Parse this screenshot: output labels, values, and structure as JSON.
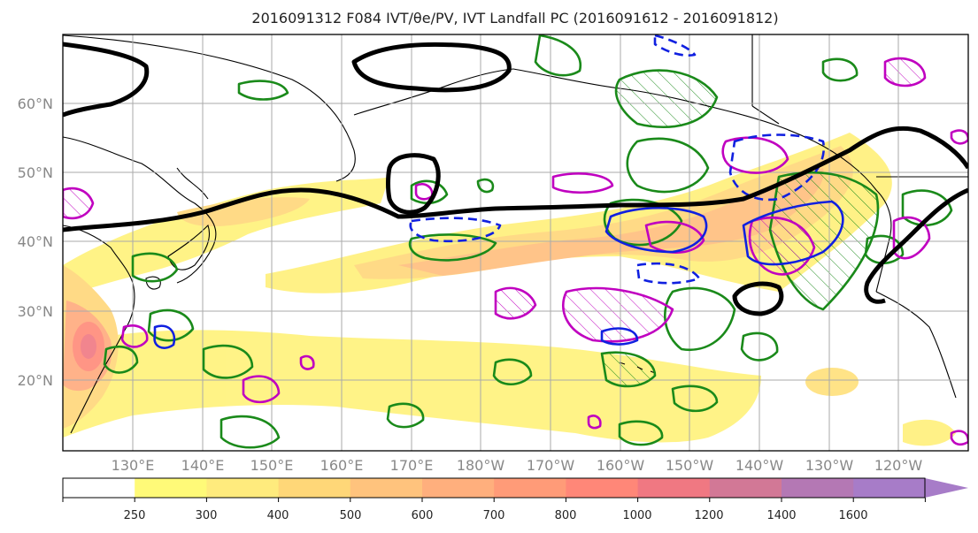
{
  "title": "2016091312 F084 IVT/θe/PV, IVT Landfall PC (2016091612 - 2016091812)",
  "map": {
    "lat_labels": [
      "60°N",
      "50°N",
      "40°N",
      "30°N",
      "20°N"
    ],
    "lon_labels": [
      "130°E",
      "140°E",
      "150°E",
      "160°E",
      "170°E",
      "180°W",
      "170°W",
      "160°W",
      "150°W",
      "140°W",
      "130°W",
      "120°W"
    ]
  },
  "colorbar": {
    "levels": [
      "250",
      "300",
      "400",
      "500",
      "600",
      "700",
      "800",
      "1000",
      "1200",
      "1400",
      "1600"
    ],
    "colors": [
      "#ffffff",
      "#fffa78",
      "#ffeb7d",
      "#ffd778",
      "#ffc37d",
      "#ffaf7d",
      "#ff9b78",
      "#ff8778",
      "#f07882",
      "#d27896",
      "#b478b4",
      "#a77cc8"
    ]
  },
  "colors": {
    "ivt_shading": "#ffcf70",
    "theta_e_contour": "#000000",
    "pv_contour_green": "#1a8a1a",
    "pv_contour_magenta": "#c000c0",
    "landfall_contour_blue": "#1020e0",
    "grid": "#aaaaaa"
  }
}
